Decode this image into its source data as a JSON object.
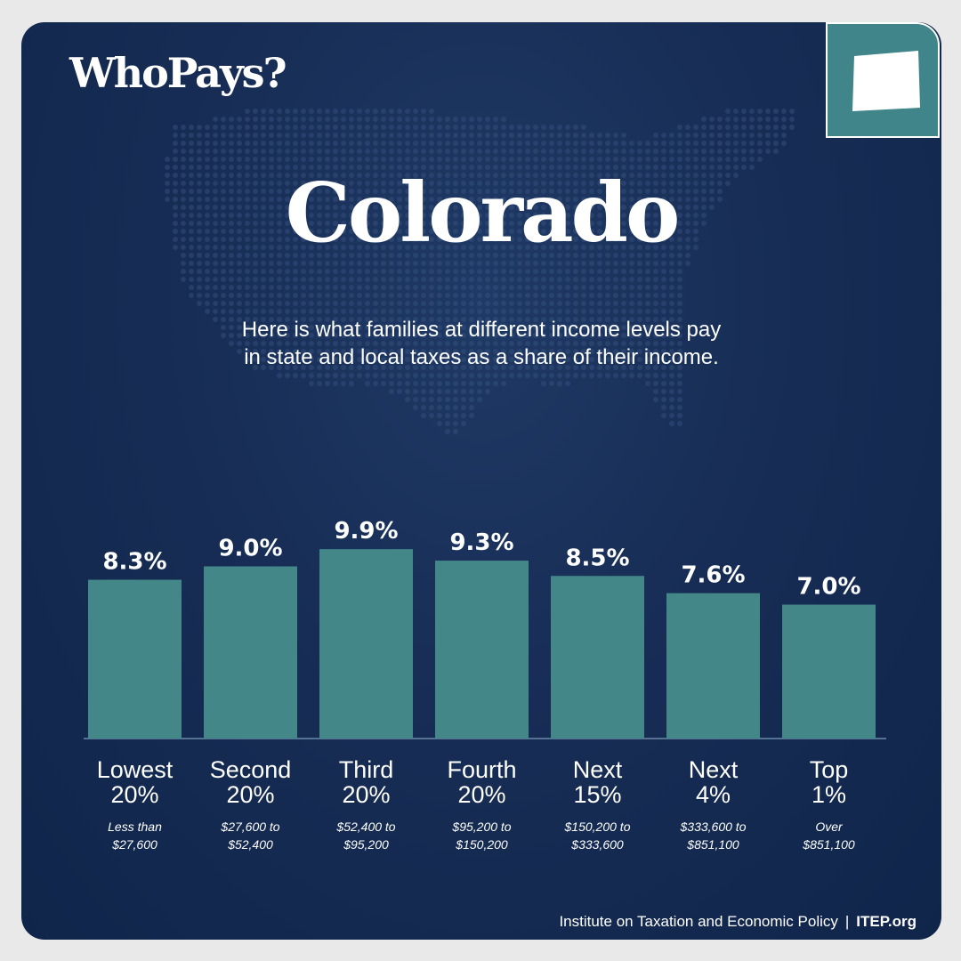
{
  "header": {
    "logo_text": "WhoPays?",
    "state_name": "Colorado",
    "description_line1": "Here is what families at different income levels pay",
    "description_line2": "in state and local taxes as a share of their income."
  },
  "badge": {
    "icon": "colorado-state-icon",
    "color": "#3f8589"
  },
  "chart_data": {
    "type": "bar",
    "categories": [
      "Lowest 20%",
      "Second 20%",
      "Third 20%",
      "Fourth 20%",
      "Next 15%",
      "Next 4%",
      "Top 1%"
    ],
    "category_lines": [
      [
        "Lowest",
        "20%"
      ],
      [
        "Second",
        "20%"
      ],
      [
        "Third",
        "20%"
      ],
      [
        "Fourth",
        "20%"
      ],
      [
        "Next",
        "15%"
      ],
      [
        "Next",
        "4%"
      ],
      [
        "Top",
        "1%"
      ]
    ],
    "income_ranges": [
      [
        "Less than",
        "$27,600"
      ],
      [
        "$27,600 to",
        "$52,400"
      ],
      [
        "$52,400 to",
        "$95,200"
      ],
      [
        "$95,200 to",
        "$150,200"
      ],
      [
        "$150,200 to",
        "$333,600"
      ],
      [
        "$333,600 to",
        "$851,100"
      ],
      [
        "Over",
        "$851,100"
      ]
    ],
    "values": [
      8.3,
      9.0,
      9.9,
      9.3,
      8.5,
      7.6,
      7.0
    ],
    "value_labels": [
      "8.3%",
      "9.0%",
      "9.9%",
      "9.3%",
      "8.5%",
      "7.6%",
      "7.0%"
    ],
    "title": "",
    "xlabel": "",
    "ylabel": "",
    "ylim": [
      0,
      10
    ],
    "grid": false,
    "bar_color": "#438789"
  },
  "footer": {
    "org_name": "Institute on Taxation and Economic Policy",
    "separator": "|",
    "site": "ITEP.org"
  }
}
